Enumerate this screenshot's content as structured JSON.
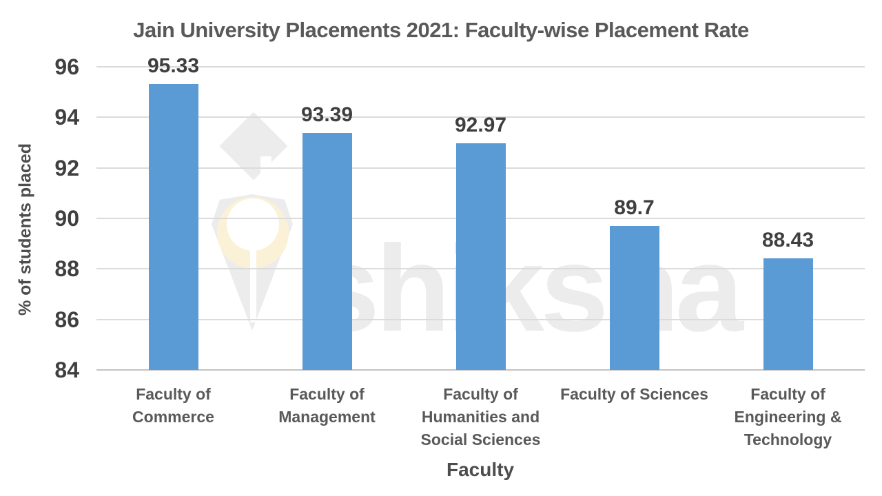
{
  "chart_data": {
    "type": "bar",
    "title": "Jain University Placements 2021: Faculty-wise Placement Rate",
    "xlabel": "Faculty",
    "ylabel": "% of students placed",
    "categories": [
      "Faculty of Commerce",
      "Faculty of Management",
      "Faculty of Humanities and Social Sciences",
      "Faculty of Sciences",
      "Faculty of Engineering & Technology"
    ],
    "category_lines": [
      [
        "Faculty of",
        "Commerce"
      ],
      [
        "Faculty of",
        "Management"
      ],
      [
        "Faculty of",
        "Humanities and",
        "Social Sciences"
      ],
      [
        "Faculty of Sciences"
      ],
      [
        "Faculty of",
        "Engineering &",
        "Technology"
      ]
    ],
    "values": [
      95.33,
      93.39,
      92.97,
      89.7,
      88.43
    ],
    "labels": [
      "95.33",
      "93.39",
      "92.97",
      "89.7",
      "88.43"
    ],
    "ylim": [
      84,
      96
    ],
    "yticks": [
      84,
      86,
      88,
      90,
      92,
      94,
      96
    ],
    "grid": true,
    "legend_position": "none",
    "bar_color": "#5b9bd5"
  },
  "watermark": {
    "text": "shiksha",
    "logo": "graduation-cap-pen-nib"
  },
  "colors": {
    "bar": "#5b9bd5",
    "gridline": "#dbdbdb",
    "axis_line": "#c3c3c3",
    "title_text": "#595959",
    "label_text": "#404040",
    "watermark_gray": "#ececec",
    "watermark_cream": "#faf1d6"
  }
}
